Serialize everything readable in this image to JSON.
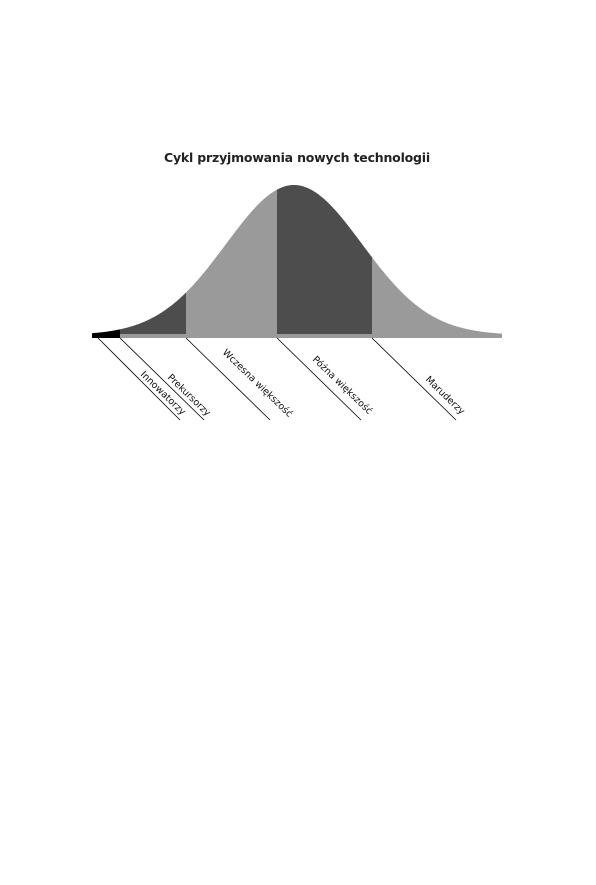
{
  "title": "Cykl przyjmowania nowych technologii",
  "segments": [
    {
      "label": "Innowatorzy",
      "color": "#000000"
    },
    {
      "label": "Prekursorzy",
      "color": "#4d4d4d"
    },
    {
      "label": "Wczesna większość",
      "color": "#9a9a9a"
    },
    {
      "label": "Późna większość",
      "color": "#4d4d4d"
    },
    {
      "label": "Maruderzy",
      "color": "#9a9a9a"
    }
  ],
  "colors": {
    "baseline": "#9a9a9a",
    "leader_line": "#000000"
  }
}
